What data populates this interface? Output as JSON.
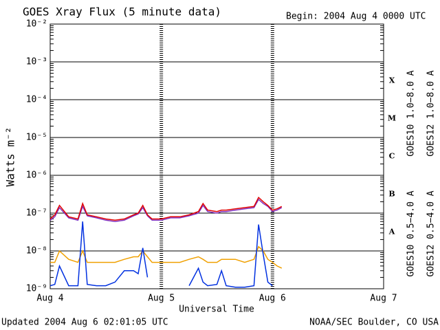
{
  "chart_data": {
    "type": "line",
    "title": "GOES Xray Flux (5 minute data)",
    "subtitle": "Begin:  2004 Aug 4 0000 UTC",
    "x_label": "Universal Time",
    "y_label": "Watts m⁻²",
    "footer_left": "Updated 2004 Aug  6 02:01:05 UTC",
    "footer_right": "NOAA/SEC Boulder, CO USA",
    "flare_classes": [
      "X",
      "M",
      "C",
      "B",
      "A"
    ],
    "log_scale": true,
    "grid": true,
    "xlim": [
      "2004-08-04T00:00",
      "2004-08-07T00:00"
    ],
    "xticks": [
      {
        "value": "2004-08-04T00:00",
        "label": "Aug 4"
      },
      {
        "value": "2004-08-05T00:00",
        "label": "Aug 5"
      },
      {
        "value": "2004-08-06T00:00",
        "label": "Aug 6"
      },
      {
        "value": "2004-08-07T00:00",
        "label": "Aug 7"
      }
    ],
    "ylim": [
      1e-09,
      0.01
    ],
    "yticks": [
      {
        "value": 1e-09,
        "label": "10⁻⁹"
      },
      {
        "value": 1e-08,
        "label": "10⁻⁸"
      },
      {
        "value": 1e-07,
        "label": "10⁻⁷"
      },
      {
        "value": 1e-06,
        "label": "10⁻⁶"
      },
      {
        "value": 1e-05,
        "label": "10⁻⁵"
      },
      {
        "value": 0.0001,
        "label": "10⁻⁴"
      },
      {
        "value": 0.001,
        "label": "10⁻³"
      },
      {
        "value": 0.01,
        "label": "10⁻²"
      }
    ],
    "x": [
      "2004-08-04T00:00",
      "2004-08-04T01:00",
      "2004-08-04T02:00",
      "2004-08-04T04:00",
      "2004-08-04T06:00",
      "2004-08-04T07:00",
      "2004-08-04T08:00",
      "2004-08-04T10:00",
      "2004-08-04T12:00",
      "2004-08-04T14:00",
      "2004-08-04T16:00",
      "2004-08-04T18:00",
      "2004-08-04T19:00",
      "2004-08-04T20:00",
      "2004-08-04T21:00",
      "2004-08-04T22:00",
      "2004-08-05T00:00",
      "2004-08-05T02:00",
      "2004-08-05T04:00",
      "2004-08-05T06:00",
      "2004-08-05T08:00",
      "2004-08-05T09:00",
      "2004-08-05T10:00",
      "2004-08-05T12:00",
      "2004-08-05T13:00",
      "2004-08-05T14:00",
      "2004-08-05T16:00",
      "2004-08-05T18:00",
      "2004-08-05T20:00",
      "2004-08-05T21:00",
      "2004-08-05T22:00",
      "2004-08-05T23:00",
      "2004-08-06T00:00",
      "2004-08-06T01:00",
      "2004-08-06T02:00"
    ],
    "series": [
      {
        "name": "GOES10 1.0−8.0 A",
        "color": "#8030c0",
        "values": [
          6.5e-08,
          8e-08,
          1.4e-07,
          7.5e-08,
          6.5e-08,
          1.5e-07,
          8.5e-08,
          7.5e-08,
          6.5e-08,
          6e-08,
          6.5e-08,
          8.5e-08,
          9.5e-08,
          1.4e-07,
          8.5e-08,
          6.5e-08,
          6.5e-08,
          7.5e-08,
          7.5e-08,
          8.5e-08,
          1e-07,
          1.6e-07,
          1.1e-07,
          1e-07,
          1.1e-07,
          1.1e-07,
          1.2e-07,
          1.3e-07,
          1.4e-07,
          2.3e-07,
          1.8e-07,
          1.5e-07,
          1.1e-07,
          1.2e-07,
          1.4e-07
        ]
      },
      {
        "name": "GOES12 1.0−8.0 A",
        "color": "#e00000",
        "values": [
          7e-08,
          9e-08,
          1.6e-07,
          8e-08,
          7e-08,
          1.8e-07,
          9e-08,
          8e-08,
          7e-08,
          6.5e-08,
          7e-08,
          9e-08,
          1e-07,
          1.6e-07,
          9e-08,
          7e-08,
          7e-08,
          8e-08,
          8e-08,
          9e-08,
          1.1e-07,
          1.8e-07,
          1.2e-07,
          1.1e-07,
          1.2e-07,
          1.2e-07,
          1.3e-07,
          1.4e-07,
          1.5e-07,
          2.6e-07,
          2e-07,
          1.6e-07,
          1.2e-07,
          1.3e-07,
          1.5e-07
        ]
      },
      {
        "name": "GOES10 0.5−4.0 A",
        "color": "#f0a000",
        "values": [
          5e-09,
          5e-09,
          1e-08,
          6e-09,
          5e-09,
          1e-08,
          5e-09,
          5e-09,
          5e-09,
          5e-09,
          6e-09,
          7e-09,
          7e-09,
          1e-08,
          7e-09,
          5e-09,
          5e-09,
          5e-09,
          5e-09,
          6e-09,
          7e-09,
          6e-09,
          5e-09,
          5e-09,
          6e-09,
          6e-09,
          6e-09,
          5e-09,
          6e-09,
          1.3e-08,
          1e-08,
          6e-09,
          5e-09,
          4e-09,
          3.5e-09
        ]
      },
      {
        "name": "GOES12 0.5−4.0 A",
        "color": "#0030e0",
        "values": [
          1.2e-09,
          1.3e-09,
          4e-09,
          1.2e-09,
          1.2e-09,
          6e-08,
          1.3e-09,
          1.2e-09,
          1.2e-09,
          1.5e-09,
          3e-09,
          3e-09,
          2.5e-09,
          1.2e-08,
          2e-09,
          null,
          null,
          null,
          null,
          1.2e-09,
          3.5e-09,
          1.5e-09,
          1.2e-09,
          1.3e-09,
          3e-09,
          1.2e-09,
          1.1e-09,
          1.1e-09,
          1.2e-09,
          5e-08,
          8e-09,
          1.5e-09,
          1.2e-09,
          null,
          null
        ]
      }
    ]
  }
}
